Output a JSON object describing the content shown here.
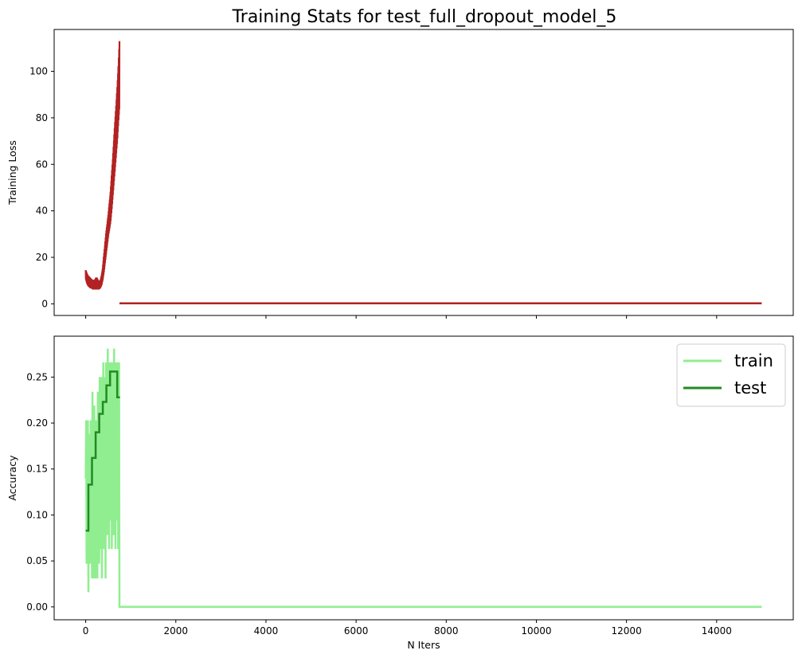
{
  "chart_data": {
    "title": "Training Stats for test_full_dropout_model_5",
    "xlabel": "N Iters",
    "subplots": [
      {
        "type": "line",
        "ylabel": "Training Loss",
        "xlim": [
          -700,
          15700
        ],
        "ylim": [
          -5,
          118
        ],
        "xticks": [
          0,
          2000,
          4000,
          6000,
          8000,
          10000,
          12000,
          14000
        ],
        "xtick_labels_shown": false,
        "yticks": [
          0,
          20,
          40,
          60,
          80,
          100
        ],
        "legend": null,
        "series": [
          {
            "color": "#b22222",
            "x": [
              0,
              25,
              50,
              75,
              100,
              125,
              150,
              175,
              200,
              225,
              250,
              275,
              300,
              325,
              350,
              375,
              400,
              425,
              450,
              475,
              500,
              525,
              550,
              575,
              600,
              625,
              650,
              675,
              700,
              725,
              750
            ],
            "y_high": [
              14.5,
              13,
              12,
              11.5,
              11,
              10.5,
              10,
              10,
              10,
              11,
              11,
              10,
              9.5,
              10,
              12,
              15,
              20,
              25,
              30,
              34,
              38,
              43,
              48,
              55,
              62,
              70,
              78,
              85,
              93,
              102,
              113
            ],
            "y_low": [
              11,
              9,
              8,
              7.5,
              7,
              7,
              6.5,
              6.5,
              6.5,
              6.5,
              6.5,
              6.5,
              6.5,
              7,
              8,
              10,
              13,
              17,
              21,
              25,
              29,
              32,
              35,
              40,
              46,
              52,
              58,
              64,
              70,
              78,
              85
            ]
          },
          {
            "color": "#b22222",
            "x": [
              750,
              15000
            ],
            "y": [
              0.2,
              0.2
            ]
          }
        ]
      },
      {
        "type": "line",
        "ylabel": "Accuracy",
        "xlim": [
          -700,
          15700
        ],
        "ylim": [
          -0.014,
          0.2945
        ],
        "xticks": [
          0,
          2000,
          4000,
          6000,
          8000,
          10000,
          12000,
          14000
        ],
        "yticks": [
          0.0,
          0.05,
          0.1,
          0.15,
          0.2,
          0.25
        ],
        "ytick_labels": [
          "0.00",
          "0.05",
          "0.10",
          "0.15",
          "0.20",
          "0.25"
        ],
        "xtick_labels": [
          "0",
          "2000",
          "4000",
          "6000",
          "8000",
          "10000",
          "12000",
          "14000"
        ],
        "legend": {
          "position": "top-right",
          "entries": [
            "train",
            "test"
          ]
        },
        "series": [
          {
            "name": "train",
            "color": "#90ee90",
            "x": [
              0,
              10,
              20,
              30,
              40,
              50,
              60,
              70,
              80,
              90,
              100,
              110,
              120,
              130,
              140,
              150,
              160,
              170,
              180,
              190,
              200,
              210,
              220,
              230,
              240,
              250,
              260,
              270,
              280,
              290,
              300,
              310,
              320,
              330,
              340,
              350,
              360,
              370,
              380,
              390,
              400,
              410,
              420,
              430,
              440,
              450,
              460,
              470,
              480,
              490,
              500,
              510,
              520,
              530,
              540,
              550,
              560,
              570,
              580,
              590,
              600,
              610,
              620,
              630,
              640,
              650,
              660,
              670,
              680,
              690,
              700,
              710,
              720,
              730,
              740,
              750,
              760,
              15000
            ],
            "y": [
              0.14,
              0.203,
              0.047,
              0.172,
              0.094,
              0.203,
              0.016,
              0.156,
              0.063,
              0.188,
              0.047,
              0.203,
              0.078,
              0.172,
              0.031,
              0.234,
              0.063,
              0.188,
              0.031,
              0.219,
              0.078,
              0.172,
              0.031,
              0.203,
              0.063,
              0.188,
              0.031,
              0.234,
              0.078,
              0.203,
              0.047,
              0.25,
              0.094,
              0.219,
              0.063,
              0.25,
              0.031,
              0.234,
              0.109,
              0.266,
              0.063,
              0.219,
              0.094,
              0.25,
              0.031,
              0.266,
              0.109,
              0.234,
              0.078,
              0.281,
              0.125,
              0.25,
              0.063,
              0.266,
              0.141,
              0.234,
              0.094,
              0.266,
              0.063,
              0.25,
              0.156,
              0.266,
              0.078,
              0.281,
              0.125,
              0.234,
              0.063,
              0.266,
              0.141,
              0.25,
              0.094,
              0.266,
              0.063,
              0.234,
              0.266,
              0.0,
              0.0,
              0.0
            ]
          },
          {
            "name": "test",
            "color": "#228b22",
            "x": [
              0,
              60,
              60,
              140,
              140,
              220,
              220,
              300,
              300,
              380,
              380,
              460,
              460,
              540,
              540,
              620,
              620,
              700,
              700,
              760
            ],
            "y": [
              0.083,
              0.083,
              0.133,
              0.133,
              0.162,
              0.162,
              0.19,
              0.19,
              0.21,
              0.21,
              0.223,
              0.223,
              0.241,
              0.241,
              0.256,
              0.256,
              0.256,
              0.256,
              0.228,
              0.228
            ]
          }
        ]
      }
    ]
  }
}
